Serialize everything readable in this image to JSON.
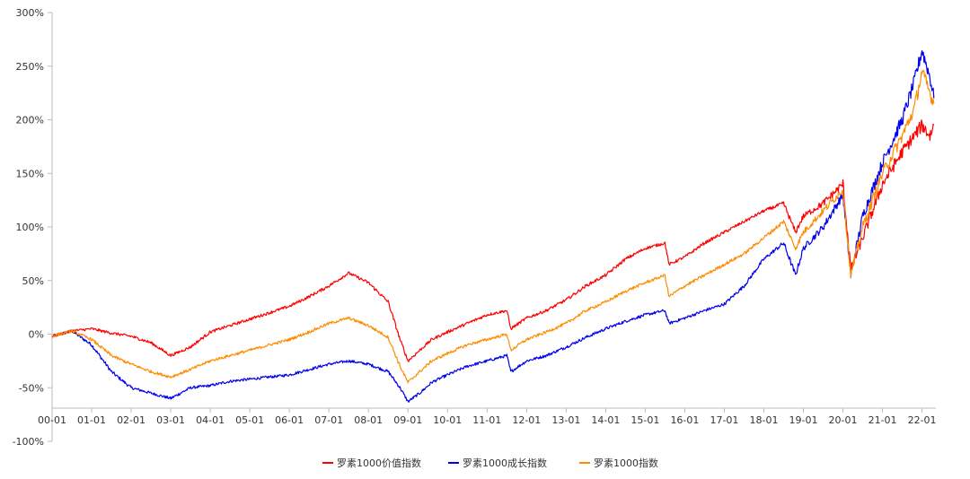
{
  "chart_data": {
    "type": "line",
    "title": "",
    "xlabel": "",
    "ylabel": "",
    "x_tick_labels": [
      "00-01",
      "01-01",
      "02-01",
      "03-01",
      "04-01",
      "05-01",
      "06-01",
      "07-01",
      "08-01",
      "09-01",
      "10-01",
      "11-01",
      "12-01",
      "13-01",
      "14-01",
      "15-01",
      "16-01",
      "17-01",
      "18-01",
      "19-01",
      "20-01",
      "21-01",
      "22-01"
    ],
    "y_tick_labels": [
      "300%",
      "250%",
      "200%",
      "150%",
      "100%",
      "50%",
      "0%",
      "-50%",
      "-100%"
    ],
    "y_ticks": [
      300,
      250,
      200,
      150,
      100,
      50,
      0,
      -50,
      -100
    ],
    "ylim": [
      -100,
      300
    ],
    "xlim": [
      0,
      22.35
    ],
    "grid": false,
    "legend_position": "bottom-center",
    "x": [
      0,
      0.5,
      1,
      1.5,
      2,
      2.5,
      3,
      3.5,
      4,
      4.5,
      5,
      5.5,
      6,
      6.5,
      7,
      7.5,
      8,
      8.5,
      8.8,
      9,
      9.3,
      9.6,
      10,
      10.5,
      11,
      11.5,
      11.6,
      12,
      12.5,
      13,
      13.5,
      14,
      14.5,
      15,
      15.5,
      15.6,
      16,
      16.5,
      17,
      17.5,
      18,
      18.5,
      18.8,
      19,
      19.5,
      20,
      20.2,
      20.5,
      21,
      21.5,
      21.8,
      22,
      22.2,
      22.3
    ],
    "series": [
      {
        "name": "罗素1000价值指数",
        "color": "#ff0000",
        "values": [
          -2,
          3,
          5,
          1,
          -2,
          -8,
          -20,
          -12,
          2,
          8,
          14,
          20,
          26,
          35,
          45,
          57,
          48,
          30,
          -5,
          -25,
          -15,
          -5,
          2,
          10,
          18,
          22,
          5,
          15,
          22,
          32,
          45,
          55,
          70,
          80,
          85,
          65,
          72,
          85,
          95,
          105,
          115,
          122,
          95,
          110,
          122,
          140,
          60,
          90,
          140,
          170,
          185,
          195,
          185,
          195
        ]
      },
      {
        "name": "罗素1000成长指数",
        "color": "#0000ee",
        "values": [
          -2,
          3,
          -10,
          -35,
          -50,
          -55,
          -60,
          -50,
          -48,
          -44,
          -42,
          -40,
          -38,
          -33,
          -28,
          -25,
          -28,
          -35,
          -50,
          -63,
          -55,
          -45,
          -38,
          -30,
          -25,
          -20,
          -35,
          -25,
          -20,
          -12,
          -3,
          5,
          12,
          18,
          22,
          10,
          15,
          22,
          28,
          45,
          70,
          85,
          55,
          80,
          100,
          130,
          55,
          110,
          160,
          200,
          235,
          265,
          240,
          220
        ]
      },
      {
        "name": "罗素1000指数",
        "color": "#ff8c00",
        "values": [
          -2,
          3,
          -5,
          -20,
          -28,
          -35,
          -40,
          -33,
          -25,
          -20,
          -15,
          -10,
          -5,
          2,
          10,
          15,
          8,
          -3,
          -30,
          -45,
          -35,
          -25,
          -18,
          -10,
          -5,
          0,
          -15,
          -5,
          2,
          10,
          22,
          30,
          40,
          48,
          55,
          35,
          45,
          55,
          65,
          75,
          90,
          105,
          80,
          95,
          115,
          135,
          55,
          100,
          150,
          185,
          210,
          245,
          225,
          215
        ]
      }
    ]
  }
}
